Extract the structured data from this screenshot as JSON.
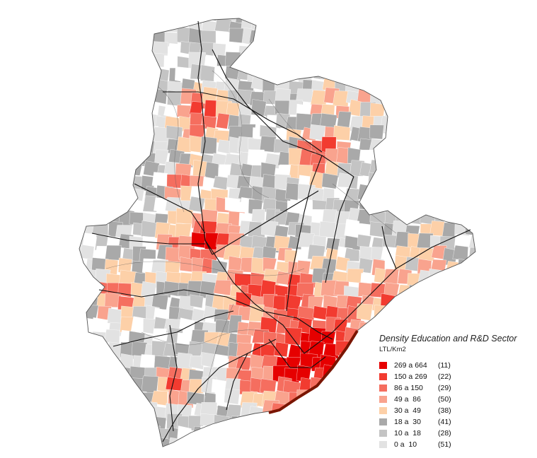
{
  "legend": {
    "title": "Density Education and R&D Sector",
    "unit": "LTL/Km2",
    "classes": [
      {
        "range": "269 a 664",
        "count": "(11)",
        "color": "#e60000"
      },
      {
        "range": "150 a 269",
        "count": "(22)",
        "color": "#f23b30"
      },
      {
        "range": "86 a 150",
        "count": "(29)",
        "color": "#f56e5f"
      },
      {
        "range": "49 a  86",
        "count": "(50)",
        "color": "#f9a38e"
      },
      {
        "range": "30 a  49",
        "count": "(38)",
        "color": "#fdd0a8"
      },
      {
        "range": "18 a  30",
        "count": "(41)",
        "color": "#a9a9a9"
      },
      {
        "range": "10 a  18",
        "count": "(28)",
        "color": "#c4c4c4"
      },
      {
        "range": "0 a  10",
        "count": "(51)",
        "color": "#e2e2e2"
      }
    ]
  },
  "map": {
    "boundary_color": "#555555",
    "road_color": "#111111",
    "coast_color": "#7a1500"
  }
}
